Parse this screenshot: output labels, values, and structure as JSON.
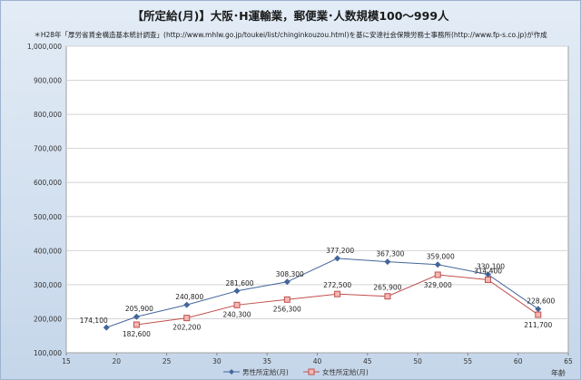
{
  "chart_data": {
    "type": "line",
    "title": "【所定給(月)】大阪･H運輸業，郵便業･人数規模100～999人",
    "subtitle": "＊H28年「厚労省賃金構造基本統計調査」(http://www.mhlw.go.jp/toukei/list/chinginkouzou.html)を基に安達社会保険労務士事務所(http://www.fp-s.co.jp)が作成",
    "xlabel": "年齢",
    "ylabel": "",
    "xlim": [
      15,
      65
    ],
    "ylim": [
      100000,
      1000000
    ],
    "x_ticks": [
      "15",
      "20",
      "25",
      "30",
      "35",
      "40",
      "45",
      "50",
      "55",
      "60",
      "65"
    ],
    "y_ticks": [
      "100,000",
      "200,000",
      "300,000",
      "400,000",
      "500,000",
      "600,000",
      "700,000",
      "800,000",
      "900,000",
      "1,000,000"
    ],
    "grid": true,
    "legend_position": "bottom",
    "series": [
      {
        "name": "男性所定給(月)",
        "color": "#44669a",
        "marker": "diamond",
        "x": [
          19,
          22,
          27,
          32,
          37,
          42,
          47,
          52,
          57,
          62
        ],
        "values": [
          174100,
          205900,
          240800,
          281600,
          308300,
          377200,
          367300,
          359000,
          330100,
          228600
        ],
        "labels": [
          "174,100",
          "205,900",
          "240,800",
          "281,600",
          "308,300",
          "377,200",
          "367,300",
          "359,000",
          "330,100",
          "228,600"
        ]
      },
      {
        "name": "女性所定給(月)",
        "color": "#c0504d",
        "marker": "square",
        "x": [
          22,
          27,
          32,
          37,
          42,
          47,
          52,
          57,
          62
        ],
        "values": [
          182600,
          202200,
          240300,
          256300,
          272500,
          265900,
          329000,
          314400,
          211700
        ],
        "labels": [
          "182,600",
          "202,200",
          "240,300",
          "256,300",
          "272,500",
          "265,900",
          "329,000",
          "314,400",
          "211,700"
        ]
      }
    ]
  }
}
